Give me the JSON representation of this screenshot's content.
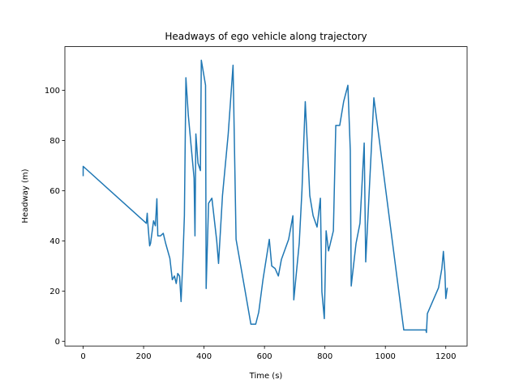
{
  "chart_data": {
    "type": "line",
    "title": "Headways of ego vehicle along trajectory",
    "x_label": "Time (s)",
    "y_label": "Headway (m)",
    "xlim": [
      -60.5,
      1270.5
    ],
    "ylim": [
      -1.9,
      117.4
    ],
    "xticks": [
      0,
      200,
      400,
      600,
      800,
      1000,
      1200
    ],
    "yticks": [
      0,
      20,
      40,
      60,
      80,
      100
    ],
    "series": [
      {
        "color": "#1f77b4",
        "x": [
          0,
          0,
          209,
          212,
          214,
          220,
          223,
          233,
          239,
          244,
          247,
          256,
          265,
          273,
          287,
          295,
          302,
          308,
          313,
          319,
          324,
          330,
          335,
          340,
          348,
          367,
          370,
          373,
          380,
          388,
          391,
          405,
          407,
          415,
          426,
          442,
          448,
          461,
          480,
          496,
          506,
          520,
          536,
          555,
          571,
          581,
          595,
          616,
          624,
          635,
          646,
          656,
          680,
          694,
          697,
          715,
          724,
          735,
          750,
          761,
          774,
          785,
          790,
          798,
          804,
          812,
          828,
          836,
          849,
          862,
          876,
          884,
          887,
          903,
          916,
          930,
          935,
          962,
          1055,
          1061,
          1134,
          1136,
          1139,
          1176,
          1187,
          1192,
          1197,
          1200,
          1205
        ],
        "values": [
          65.8,
          69.7,
          47,
          51,
          47,
          38,
          39,
          48,
          46,
          56.8,
          42,
          42,
          43,
          39,
          33,
          24.5,
          26,
          23,
          27,
          26,
          15.8,
          32.5,
          50,
          105,
          90,
          65,
          42,
          82.6,
          71,
          68,
          112,
          102,
          21,
          55,
          57,
          40,
          31,
          58,
          82.6,
          110,
          40.6,
          31,
          20,
          6.8,
          6.8,
          11.6,
          24.5,
          40.6,
          30,
          29,
          26,
          32.6,
          40.6,
          50,
          16.5,
          39,
          60,
          95.5,
          58,
          50,
          45.5,
          57,
          19.7,
          9,
          44,
          36,
          44,
          86,
          86,
          95.5,
          102,
          76,
          22,
          39,
          47,
          79,
          31.6,
          97,
          10,
          4.5,
          4.5,
          3.5,
          11,
          21.3,
          29,
          35.8,
          27.7,
          17,
          21.3
        ]
      }
    ]
  }
}
